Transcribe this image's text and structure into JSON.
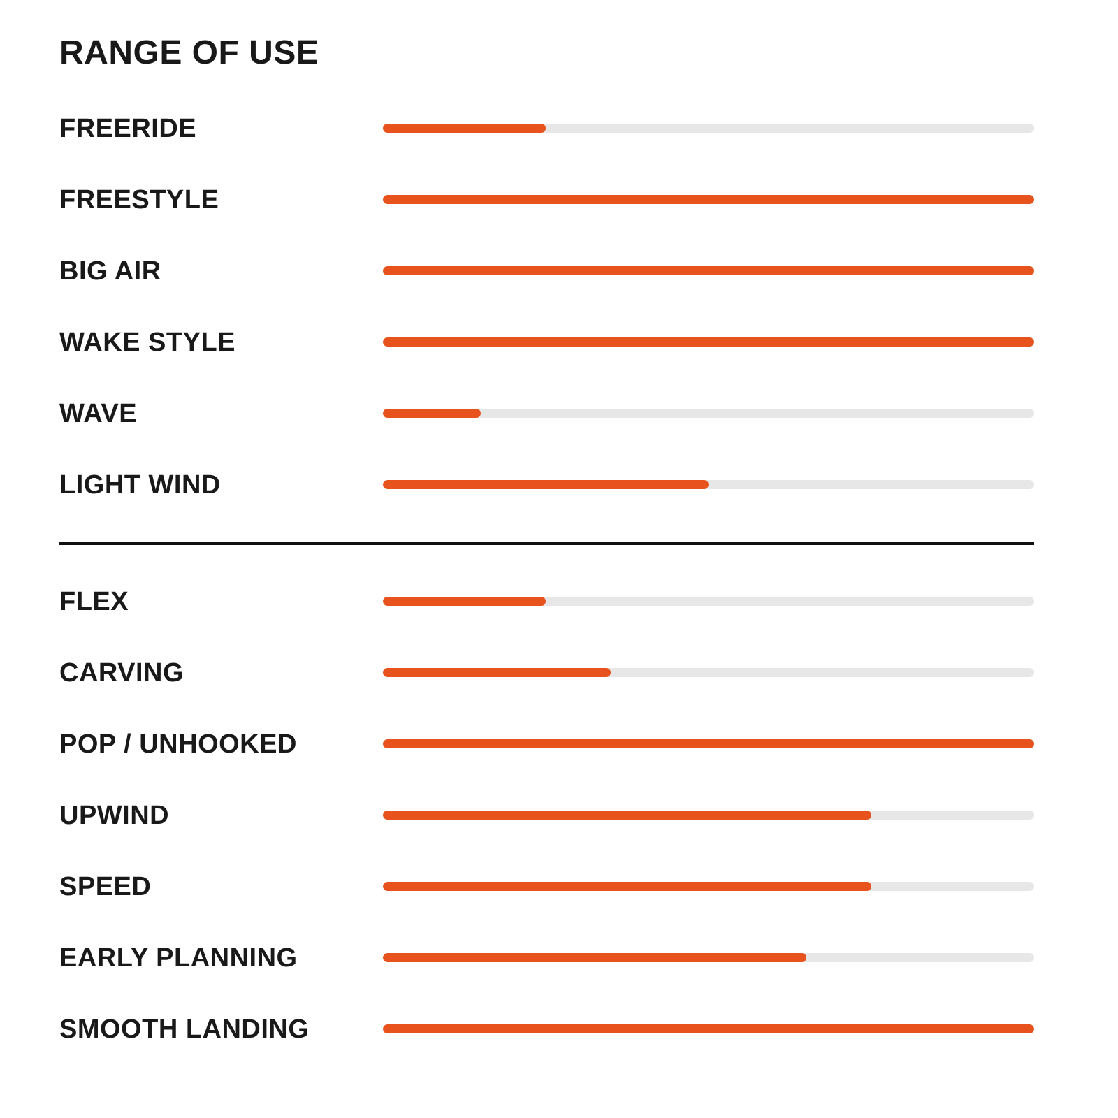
{
  "title": "RANGE OF USE",
  "colors": {
    "bar_fill": "#e8531d",
    "bar_track": "#e7e7e7",
    "text": "#191919",
    "divider": "#111111",
    "background": "#ffffff"
  },
  "chart_data": {
    "type": "bar",
    "orientation": "horizontal",
    "title": "RANGE OF USE",
    "value_range": [
      0,
      100
    ],
    "grid": false,
    "legend": false,
    "sections": [
      {
        "name": "range-of-use",
        "rows": [
          {
            "label": "FREERIDE",
            "value": 25
          },
          {
            "label": "FREESTYLE",
            "value": 100
          },
          {
            "label": "BIG AIR",
            "value": 100
          },
          {
            "label": "WAKE STYLE",
            "value": 100
          },
          {
            "label": "WAVE",
            "value": 15
          },
          {
            "label": "LIGHT WIND",
            "value": 50
          }
        ]
      },
      {
        "name": "performance",
        "rows": [
          {
            "label": "FLEX",
            "value": 25
          },
          {
            "label": "CARVING",
            "value": 35
          },
          {
            "label": "POP / UNHOOKED",
            "value": 100
          },
          {
            "label": "UPWIND",
            "value": 75
          },
          {
            "label": "SPEED",
            "value": 75
          },
          {
            "label": "EARLY PLANNING",
            "value": 65
          },
          {
            "label": "SMOOTH LANDING",
            "value": 100
          }
        ]
      }
    ]
  }
}
